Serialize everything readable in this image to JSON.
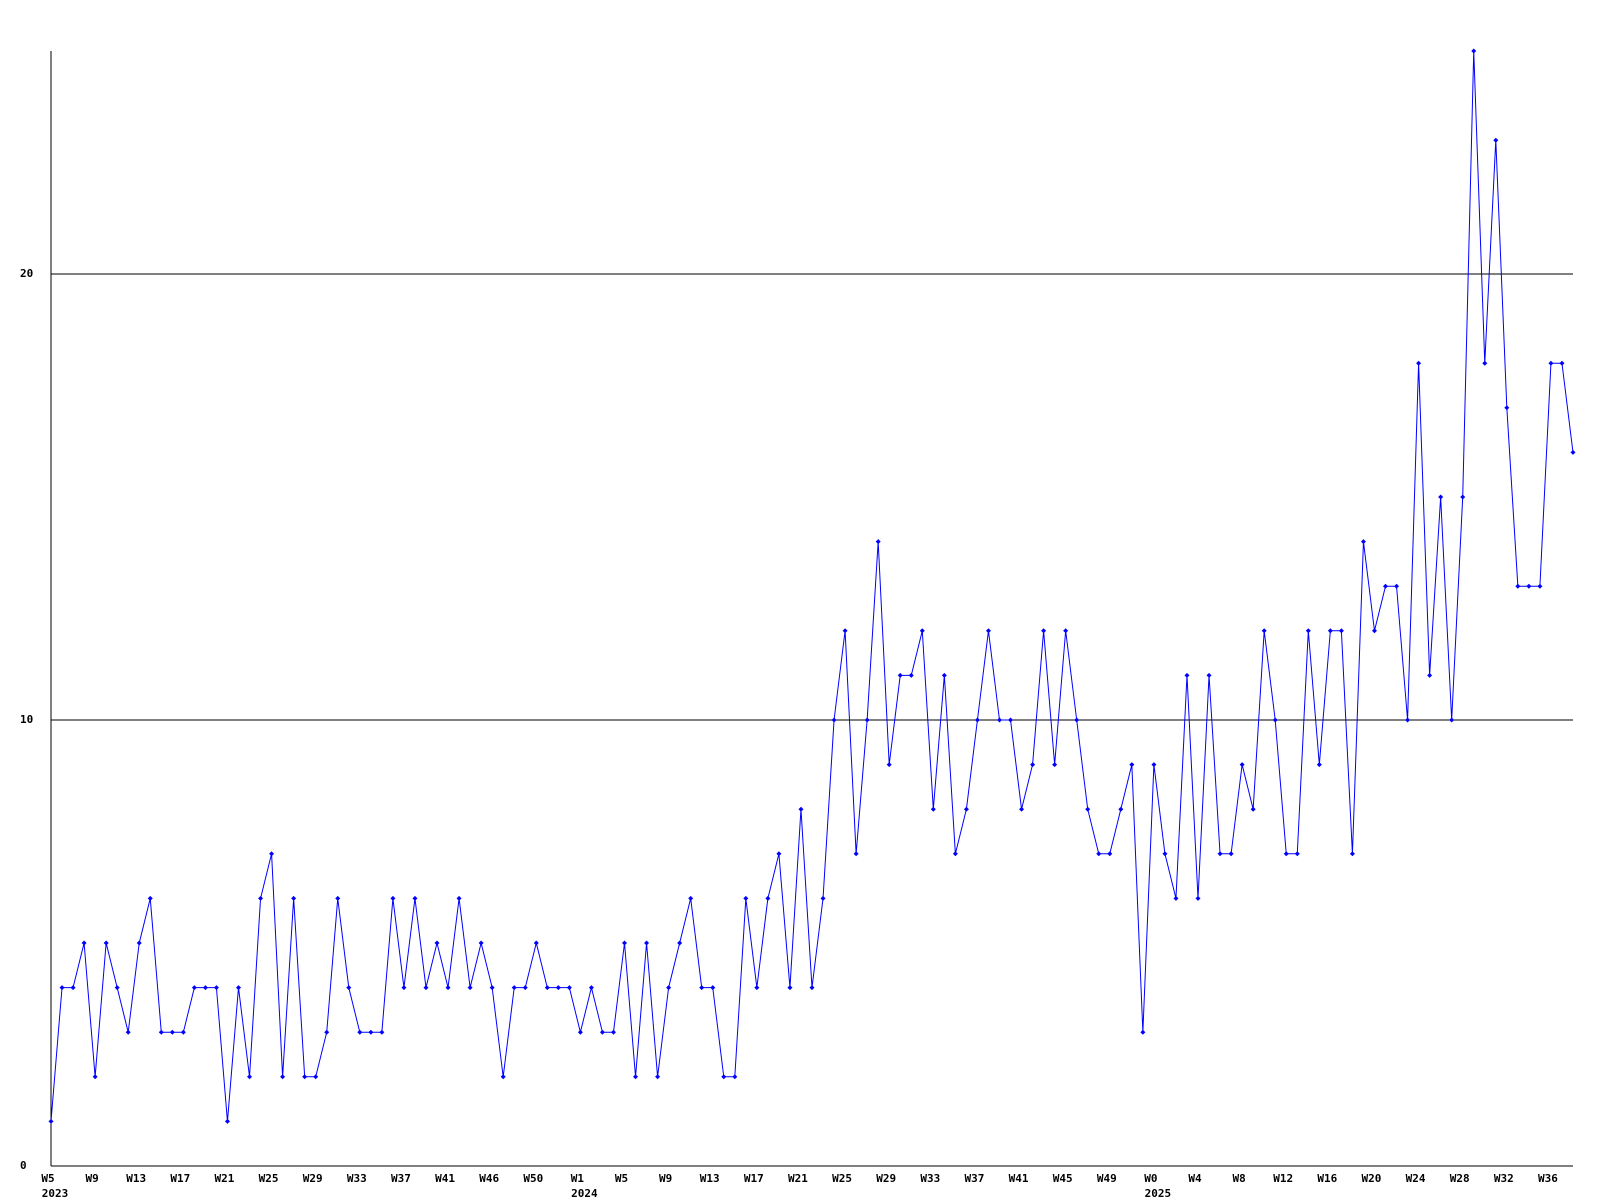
{
  "chart_data": {
    "type": "line",
    "color": "#0000ff",
    "ylim": [
      0,
      25
    ],
    "yticks": [
      0,
      10,
      20
    ],
    "grid": true,
    "values": [
      1,
      4,
      4,
      5,
      2,
      5,
      4,
      3,
      5,
      6,
      3,
      3,
      3,
      4,
      4,
      4,
      1,
      4,
      2,
      6,
      7,
      2,
      6,
      2,
      2,
      3,
      6,
      4,
      3,
      3,
      3,
      6,
      4,
      6,
      4,
      5,
      4,
      6,
      4,
      5,
      4,
      2,
      4,
      4,
      5,
      4,
      4,
      4,
      3,
      4,
      3,
      3,
      5,
      2,
      5,
      2,
      4,
      5,
      6,
      4,
      4,
      2,
      2,
      6,
      4,
      6,
      7,
      4,
      8,
      4,
      6,
      10,
      12,
      7,
      10,
      14,
      9,
      11,
      11,
      12,
      8,
      11,
      7,
      8,
      10,
      12,
      10,
      10,
      8,
      9,
      12,
      9,
      12,
      10,
      8,
      7,
      7,
      8,
      9,
      3,
      9,
      7,
      6,
      11,
      6,
      11,
      7,
      7,
      9,
      8,
      12,
      10,
      7,
      7,
      12,
      9,
      12,
      12,
      7,
      14,
      12,
      13,
      13,
      10,
      18,
      11,
      15,
      10,
      15,
      25,
      18,
      23,
      17,
      13,
      13,
      13,
      18,
      18,
      16
    ],
    "categories": [
      "W5",
      null,
      null,
      null,
      "W9",
      null,
      null,
      null,
      "W13",
      null,
      null,
      null,
      "W17",
      null,
      null,
      null,
      "W21",
      null,
      null,
      null,
      "W25",
      null,
      null,
      null,
      "W29",
      null,
      null,
      null,
      "W33",
      null,
      null,
      null,
      "W37",
      null,
      null,
      null,
      "W41",
      null,
      null,
      null,
      "W46",
      null,
      null,
      null,
      "W50",
      null,
      null,
      null,
      "W1",
      null,
      null,
      null,
      "W5",
      null,
      null,
      null,
      "W9",
      null,
      null,
      null,
      "W13",
      null,
      null,
      null,
      "W17",
      null,
      null,
      null,
      "W21",
      null,
      null,
      null,
      "W25",
      null,
      null,
      null,
      "W29",
      null,
      null,
      null,
      "W33",
      null,
      null,
      null,
      "W37",
      null,
      null,
      null,
      "W41",
      null,
      null,
      null,
      "W45",
      null,
      null,
      null,
      "W49",
      null,
      null,
      null,
      "W0",
      null,
      null,
      null,
      "W4",
      null,
      null,
      null,
      "W8",
      null,
      null,
      null,
      "W12",
      null,
      null,
      null,
      "W16",
      null,
      null,
      null,
      "W20",
      null,
      null,
      null,
      "W24",
      null,
      null,
      null,
      "W28",
      null,
      null,
      null,
      "W32",
      null,
      null,
      null,
      "W36",
      null,
      null
    ],
    "years": [
      "2023",
      null,
      null,
      null,
      null,
      null,
      null,
      null,
      null,
      null,
      null,
      null,
      null,
      null,
      null,
      null,
      null,
      null,
      null,
      null,
      null,
      null,
      null,
      null,
      null,
      null,
      null,
      null,
      null,
      null,
      null,
      null,
      null,
      null,
      null,
      null,
      null,
      null,
      null,
      null,
      null,
      null,
      null,
      null,
      null,
      null,
      null,
      null,
      "2024",
      null,
      null,
      null,
      null,
      null,
      null,
      null,
      null,
      null,
      null,
      null,
      null,
      null,
      null,
      null,
      null,
      null,
      null,
      null,
      null,
      null,
      null,
      null,
      null,
      null,
      null,
      null,
      null,
      null,
      null,
      null,
      null,
      null,
      null,
      null,
      null,
      null,
      null,
      null,
      null,
      null,
      null,
      null,
      null,
      null,
      null,
      null,
      null,
      null,
      null,
      null,
      "2025",
      null,
      null,
      null,
      null,
      null,
      null,
      null,
      null,
      null,
      null,
      null,
      null,
      null,
      null,
      null,
      null,
      null,
      null,
      null,
      null,
      null,
      null,
      null,
      null,
      null,
      null,
      null,
      null,
      null,
      null,
      null,
      null,
      null,
      null,
      null,
      null,
      null,
      null
    ]
  }
}
